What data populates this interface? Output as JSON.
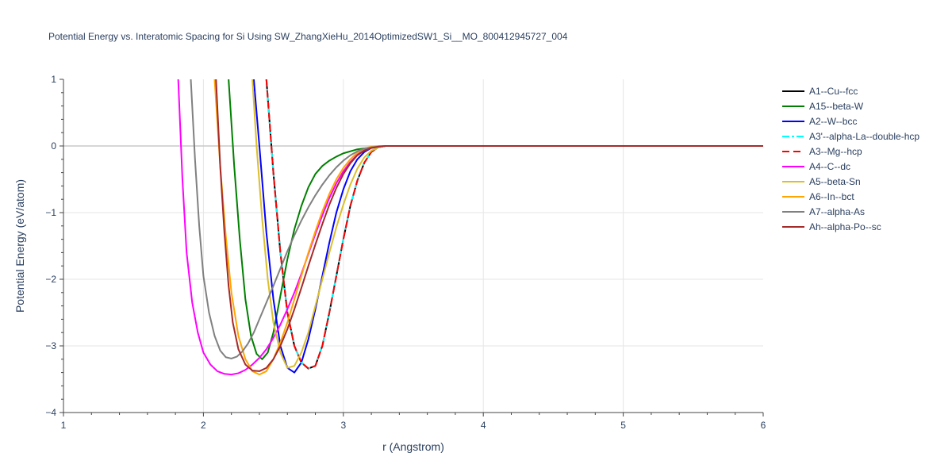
{
  "chart_data": {
    "type": "line",
    "title": "Potential Energy vs. Interatomic Spacing for Si Using SW_ZhangXieHu_2014OptimizedSW1_Si__MO_800412945727_004",
    "xlabel": "r (Angstrom)",
    "ylabel": "Potential Energy (eV/atom)",
    "xlim": [
      1,
      6
    ],
    "ylim": [
      -4,
      1
    ],
    "xticks": [
      1,
      2,
      3,
      4,
      5,
      6
    ],
    "yticks": [
      -4,
      -3,
      -2,
      -1,
      0,
      1
    ],
    "grid": true,
    "legend_position": "right",
    "series": [
      {
        "name": "A1--Cu--fcc",
        "color": "#000000",
        "dash": "solid",
        "x": [
          2.45,
          2.5,
          2.55,
          2.6,
          2.65,
          2.7,
          2.75,
          2.8,
          2.85,
          2.9,
          2.95,
          3.0,
          3.05,
          3.1,
          3.15,
          3.2,
          3.25,
          3.3,
          3.35,
          3.5,
          4.0,
          5.0,
          6.0
        ],
        "y": [
          1.0,
          -0.4,
          -1.6,
          -2.5,
          -3.0,
          -3.25,
          -3.34,
          -3.3,
          -3.0,
          -2.5,
          -1.95,
          -1.4,
          -0.9,
          -0.52,
          -0.25,
          -0.09,
          -0.02,
          0,
          0,
          0,
          0,
          0,
          0
        ]
      },
      {
        "name": "A15--beta-W",
        "color": "#008000",
        "dash": "solid",
        "x": [
          2.18,
          2.22,
          2.26,
          2.3,
          2.34,
          2.38,
          2.42,
          2.46,
          2.5,
          2.55,
          2.6,
          2.65,
          2.7,
          2.75,
          2.8,
          2.85,
          2.9,
          2.95,
          3.0,
          3.1,
          3.2,
          3.3,
          3.4,
          4.0,
          5.0,
          6.0
        ],
        "y": [
          1.0,
          -0.3,
          -1.4,
          -2.3,
          -2.85,
          -3.12,
          -3.2,
          -3.1,
          -2.8,
          -2.25,
          -1.7,
          -1.25,
          -0.9,
          -0.62,
          -0.42,
          -0.3,
          -0.22,
          -0.16,
          -0.11,
          -0.05,
          -0.02,
          0,
          0,
          0,
          0,
          0
        ]
      },
      {
        "name": "A2--W--bcc",
        "color": "#0000ff",
        "dash": "solid",
        "x": [
          2.36,
          2.4,
          2.45,
          2.5,
          2.55,
          2.6,
          2.65,
          2.7,
          2.75,
          2.8,
          2.85,
          2.9,
          2.95,
          3.0,
          3.05,
          3.1,
          3.15,
          3.2,
          3.25,
          3.3,
          3.35,
          3.5,
          4.0,
          5.0,
          6.0
        ],
        "y": [
          1.0,
          0.0,
          -1.3,
          -2.3,
          -3.0,
          -3.33,
          -3.4,
          -3.25,
          -2.9,
          -2.45,
          -1.95,
          -1.45,
          -1.0,
          -0.65,
          -0.38,
          -0.2,
          -0.09,
          -0.03,
          -0.01,
          0,
          0,
          0,
          0,
          0,
          0
        ]
      },
      {
        "name": "A3'--alpha-La--double-hcp",
        "color": "#00ffff",
        "dash": "dashdot",
        "x": [
          2.45,
          2.5,
          2.55,
          2.6,
          2.65,
          2.7,
          2.75,
          2.8,
          2.85,
          2.9,
          2.95,
          3.0,
          3.05,
          3.1,
          3.15,
          3.2,
          3.25,
          3.3,
          3.35,
          3.5,
          4.0,
          5.0,
          6.0
        ],
        "y": [
          1.0,
          -0.4,
          -1.6,
          -2.5,
          -3.0,
          -3.25,
          -3.34,
          -3.3,
          -3.0,
          -2.5,
          -1.95,
          -1.4,
          -0.9,
          -0.52,
          -0.25,
          -0.09,
          -0.02,
          0,
          0,
          0,
          0,
          0,
          0
        ]
      },
      {
        "name": "A3--Mg--hcp",
        "color": "#ff0000",
        "dash": "dash",
        "x": [
          2.45,
          2.5,
          2.55,
          2.6,
          2.65,
          2.7,
          2.75,
          2.8,
          2.85,
          2.9,
          2.95,
          3.0,
          3.05,
          3.1,
          3.15,
          3.2,
          3.25,
          3.3,
          3.35,
          3.5,
          4.0,
          5.0,
          6.0
        ],
        "y": [
          1.0,
          -0.4,
          -1.6,
          -2.5,
          -3.0,
          -3.25,
          -3.34,
          -3.3,
          -3.0,
          -2.5,
          -1.95,
          -1.4,
          -0.9,
          -0.52,
          -0.25,
          -0.09,
          -0.02,
          0,
          0,
          0,
          0,
          0,
          0
        ]
      },
      {
        "name": "A4--C--dc",
        "color": "#ff00ff",
        "dash": "solid",
        "x": [
          1.82,
          1.85,
          1.88,
          1.92,
          1.96,
          2.0,
          2.05,
          2.1,
          2.15,
          2.2,
          2.25,
          2.3,
          2.35,
          2.4,
          2.45,
          2.5,
          2.55,
          2.6,
          2.65,
          2.7,
          2.75,
          2.8,
          2.85,
          2.9,
          2.95,
          3.0,
          3.05,
          3.1,
          3.15,
          3.2,
          3.25,
          3.3,
          3.35,
          3.5,
          4.0,
          5.0,
          6.0
        ],
        "y": [
          1.0,
          -0.5,
          -1.6,
          -2.35,
          -2.8,
          -3.1,
          -3.28,
          -3.38,
          -3.42,
          -3.43,
          -3.41,
          -3.36,
          -3.28,
          -3.18,
          -3.05,
          -2.88,
          -2.68,
          -2.45,
          -2.2,
          -1.92,
          -1.62,
          -1.32,
          -1.04,
          -0.78,
          -0.56,
          -0.38,
          -0.24,
          -0.13,
          -0.06,
          -0.02,
          -0.01,
          0,
          0,
          0,
          0,
          0,
          0
        ]
      },
      {
        "name": "A5--beta-Sn",
        "color": "#dbbf2c",
        "dash": "solid",
        "x": [
          2.35,
          2.38,
          2.42,
          2.46,
          2.5,
          2.55,
          2.6,
          2.65,
          2.7,
          2.75,
          2.8,
          2.85,
          2.9,
          2.95,
          3.0,
          3.05,
          3.1,
          3.15,
          3.2,
          3.25,
          3.3,
          3.35,
          3.5,
          4.0,
          5.0,
          6.0
        ],
        "y": [
          1.0,
          0.0,
          -1.1,
          -2.0,
          -2.65,
          -3.1,
          -3.33,
          -3.3,
          -3.1,
          -2.8,
          -2.4,
          -2.0,
          -1.6,
          -1.22,
          -0.88,
          -0.58,
          -0.34,
          -0.17,
          -0.07,
          -0.02,
          0,
          0,
          0,
          0,
          0,
          0
        ]
      },
      {
        "name": "A6--In--bct",
        "color": "#ffa500",
        "dash": "solid",
        "x": [
          2.08,
          2.12,
          2.16,
          2.2,
          2.25,
          2.3,
          2.35,
          2.4,
          2.45,
          2.5,
          2.55,
          2.6,
          2.65,
          2.7,
          2.75,
          2.8,
          2.85,
          2.9,
          2.95,
          3.0,
          3.05,
          3.1,
          3.15,
          3.2,
          3.25,
          3.3,
          3.35,
          3.5,
          4.0,
          5.0,
          6.0
        ],
        "y": [
          1.0,
          -0.3,
          -1.35,
          -2.2,
          -2.85,
          -3.2,
          -3.38,
          -3.43,
          -3.38,
          -3.2,
          -2.95,
          -2.65,
          -2.3,
          -1.95,
          -1.6,
          -1.28,
          -0.98,
          -0.72,
          -0.5,
          -0.33,
          -0.2,
          -0.1,
          -0.04,
          -0.01,
          0,
          0,
          0,
          0,
          0,
          0,
          0
        ]
      },
      {
        "name": "A7--alpha-As",
        "color": "#808080",
        "dash": "solid",
        "x": [
          1.91,
          1.94,
          1.97,
          2.0,
          2.04,
          2.08,
          2.12,
          2.16,
          2.2,
          2.24,
          2.28,
          2.32,
          2.36,
          2.4,
          2.45,
          2.5,
          2.55,
          2.6,
          2.65,
          2.7,
          2.75,
          2.8,
          2.85,
          2.9,
          2.95,
          3.0,
          3.05,
          3.1,
          3.15,
          3.2,
          3.25,
          3.3,
          3.35,
          3.5,
          4.0,
          5.0,
          6.0
        ],
        "y": [
          1.0,
          -0.2,
          -1.2,
          -1.95,
          -2.5,
          -2.85,
          -3.07,
          -3.17,
          -3.19,
          -3.16,
          -3.08,
          -2.96,
          -2.8,
          -2.6,
          -2.35,
          -2.1,
          -1.84,
          -1.58,
          -1.34,
          -1.12,
          -0.92,
          -0.74,
          -0.58,
          -0.44,
          -0.32,
          -0.22,
          -0.14,
          -0.08,
          -0.04,
          -0.02,
          -0.01,
          0,
          0,
          0,
          0,
          0,
          0
        ]
      },
      {
        "name": "Ah--alpha-Po--sc",
        "color": "#a52a2a",
        "dash": "solid",
        "x": [
          2.09,
          2.12,
          2.15,
          2.18,
          2.21,
          2.25,
          2.3,
          2.35,
          2.4,
          2.45,
          2.5,
          2.55,
          2.6,
          2.65,
          2.7,
          2.75,
          2.8,
          2.85,
          2.9,
          2.95,
          3.0,
          3.05,
          3.1,
          3.15,
          3.2,
          3.25,
          3.3,
          3.35,
          3.5,
          4.0,
          5.0,
          6.0
        ],
        "y": [
          1.0,
          -0.3,
          -1.3,
          -2.1,
          -2.65,
          -3.05,
          -3.28,
          -3.37,
          -3.38,
          -3.33,
          -3.2,
          -3.0,
          -2.75,
          -2.45,
          -2.13,
          -1.8,
          -1.48,
          -1.17,
          -0.88,
          -0.63,
          -0.42,
          -0.26,
          -0.14,
          -0.07,
          -0.03,
          -0.01,
          0,
          0,
          0,
          0,
          0,
          0
        ]
      }
    ]
  }
}
